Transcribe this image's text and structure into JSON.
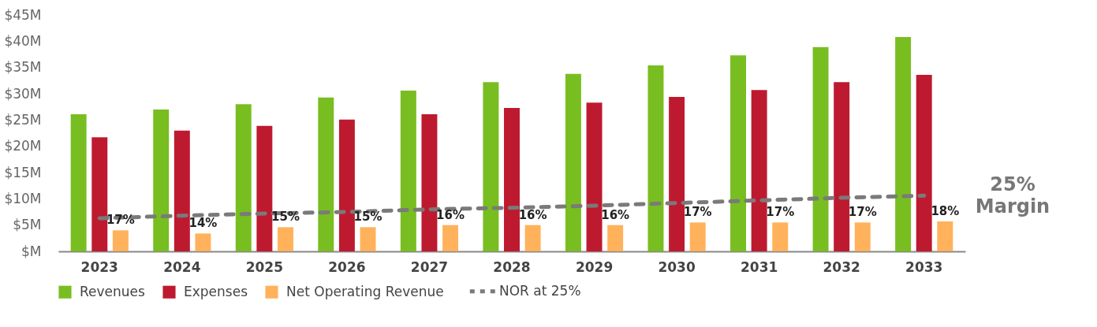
{
  "chart_data": {
    "type": "bar",
    "categories": [
      "2023",
      "2024",
      "2025",
      "2026",
      "2027",
      "2028",
      "2029",
      "2030",
      "2031",
      "2032",
      "2033"
    ],
    "series": [
      {
        "name": "Revenues",
        "color": "#78be20",
        "values": [
          26.1,
          27.0,
          28.0,
          29.3,
          30.6,
          32.2,
          33.8,
          35.4,
          37.3,
          38.9,
          40.8
        ]
      },
      {
        "name": "Expenses",
        "color": "#be1a2f",
        "values": [
          21.7,
          23.0,
          23.9,
          25.1,
          26.1,
          27.3,
          28.3,
          29.4,
          30.7,
          32.2,
          33.6
        ]
      },
      {
        "name": "Net Operating Revenue",
        "color": "#ffb25b",
        "values": [
          4.0,
          3.4,
          4.6,
          4.6,
          5.0,
          5.0,
          5.0,
          5.5,
          5.5,
          5.5,
          5.7
        ]
      },
      {
        "name": "NOR at 25%",
        "type": "line",
        "color": "#7a7a7a",
        "line_style": "dashed",
        "values": [
          6.3,
          6.8,
          7.2,
          7.5,
          8.0,
          8.3,
          8.7,
          9.2,
          9.7,
          10.2,
          10.6
        ]
      }
    ],
    "ylim": [
      0,
      45
    ],
    "yticks": [
      {
        "value": 0,
        "label": "$M"
      },
      {
        "value": 5,
        "label": "$5M"
      },
      {
        "value": 10,
        "label": "$10M"
      },
      {
        "value": 15,
        "label": "$15M"
      },
      {
        "value": 20,
        "label": "$20M"
      },
      {
        "value": 25,
        "label": "$25M"
      },
      {
        "value": 30,
        "label": "$30M"
      },
      {
        "value": 35,
        "label": "$35M"
      },
      {
        "value": 40,
        "label": "$40M"
      },
      {
        "value": 45,
        "label": "$45M"
      }
    ],
    "annotations": [
      "25%\nMargin",
      "17%",
      "14%",
      "15%",
      "15%",
      "16%",
      "16%",
      "16%",
      "17%",
      "17%",
      "17%",
      "18%"
    ],
    "legend": "bottom"
  }
}
